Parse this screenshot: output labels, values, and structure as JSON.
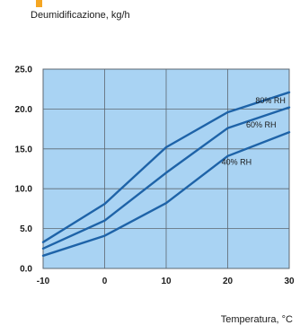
{
  "colors": {
    "plot_background": "#a9d3f3",
    "line": "#1e63a8",
    "grid": "#5d6770",
    "text": "#1a1a1a",
    "accent": "#f5a623"
  },
  "chart_data": {
    "type": "line",
    "ylabel": "Deumidificazione, kg/h",
    "xlabel": "Temperatura, °C",
    "xlim": [
      -10,
      30
    ],
    "ylim": [
      0,
      25
    ],
    "x_ticks": [
      -10,
      0,
      10,
      20,
      30
    ],
    "x_tick_labels": [
      "-10",
      "0",
      "10",
      "20",
      "30"
    ],
    "y_ticks": [
      0,
      5,
      10,
      15,
      20,
      25
    ],
    "y_tick_labels": [
      "0.0",
      "5.0",
      "10.0",
      "15.0",
      "20.0",
      "25.0"
    ],
    "grid": true,
    "x": [
      -10,
      0,
      10,
      20,
      30
    ],
    "series": [
      {
        "name": "80% RH",
        "values": [
          3.3,
          8.1,
          15.2,
          19.6,
          22.1
        ]
      },
      {
        "name": "60% RH",
        "values": [
          2.5,
          6.0,
          12.0,
          17.6,
          20.2
        ]
      },
      {
        "name": "40% RH",
        "values": [
          1.6,
          4.1,
          8.2,
          14.1,
          17.1
        ]
      }
    ]
  }
}
